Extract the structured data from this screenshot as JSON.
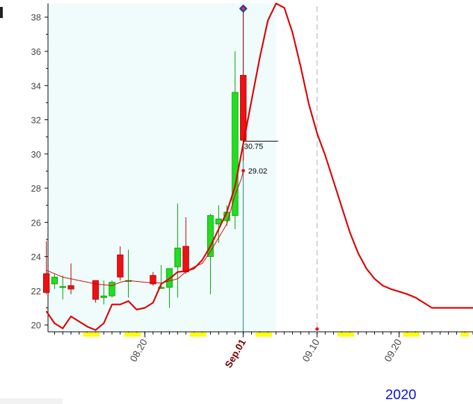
{
  "chart_data": {
    "type": "candlestick",
    "year_label": "2020",
    "y_ticks": [
      "20",
      "22",
      "24",
      "26",
      "28",
      "30",
      "32",
      "34",
      "36",
      "38"
    ],
    "ylim": [
      19.6,
      38.8
    ],
    "x_ticks": [
      {
        "day": 20,
        "label": "08.20",
        "bold": false
      },
      {
        "day": 32,
        "label": "Sep.01",
        "bold": true
      },
      {
        "day": 41,
        "label": "09.10",
        "bold": false
      },
      {
        "day": 51,
        "label": "09.20",
        "bold": false
      }
    ],
    "xlim": [
      8.2,
      60
    ],
    "history_end_day": 36,
    "peak_day": 41,
    "last_price": {
      "value": 30.75,
      "label": "30.75"
    },
    "average_point": {
      "value": 29.02,
      "label": "29.02"
    },
    "peak_marker": {
      "value": 38.5
    },
    "candles": [
      {
        "day": 8,
        "open": 23.0,
        "close": 21.9,
        "high": 24.9,
        "low": 21.8
      },
      {
        "day": 9,
        "open": 22.4,
        "close": 22.8,
        "high": 23.0,
        "low": 22.1
      },
      {
        "day": 10,
        "open": 22.2,
        "close": 22.25,
        "high": 22.9,
        "low": 21.5
      },
      {
        "day": 11,
        "open": 22.3,
        "close": 22.1,
        "high": 23.6,
        "low": 21.8
      },
      {
        "day": 14,
        "open": 22.6,
        "close": 21.5,
        "high": 22.6,
        "low": 21.3
      },
      {
        "day": 15,
        "open": 21.6,
        "close": 21.7,
        "high": 22.6,
        "low": 21.2
      },
      {
        "day": 16,
        "open": 21.7,
        "close": 22.5,
        "high": 22.6,
        "low": 21.6
      },
      {
        "day": 17,
        "open": 24.1,
        "close": 22.8,
        "high": 24.6,
        "low": 22.6
      },
      {
        "day": 18,
        "open": 22.6,
        "close": 22.6,
        "high": 24.4,
        "low": 21.6
      },
      {
        "day": 21,
        "open": 22.9,
        "close": 22.4,
        "high": 23.1,
        "low": 22.3
      },
      {
        "day": 22,
        "open": 22.2,
        "close": 22.2,
        "high": 23.5,
        "low": 22.1
      },
      {
        "day": 23,
        "open": 22.2,
        "close": 23.3,
        "high": 23.3,
        "low": 21.0
      },
      {
        "day": 24,
        "open": 23.4,
        "close": 24.5,
        "high": 27.1,
        "low": 21.6
      },
      {
        "day": 25,
        "open": 24.6,
        "close": 23.1,
        "high": 26.3,
        "low": 23.0
      },
      {
        "day": 28,
        "open": 24.0,
        "close": 26.4,
        "high": 26.5,
        "low": 21.8
      },
      {
        "day": 29,
        "open": 25.9,
        "close": 26.2,
        "high": 27.0,
        "low": 24.8
      },
      {
        "day": 30,
        "open": 26.1,
        "close": 26.6,
        "high": 27.0,
        "low": 25.8
      },
      {
        "day": 31,
        "open": 26.4,
        "close": 33.6,
        "high": 36.0,
        "low": 25.6
      },
      {
        "day": 32,
        "open": 34.6,
        "close": 30.8,
        "high": 38.5,
        "low": 29.6
      }
    ],
    "series": [
      {
        "style": "thin",
        "x": [
          8,
          10,
          12,
          14,
          16,
          17,
          18,
          20,
          22,
          24,
          25,
          26,
          27,
          28,
          29,
          30,
          31,
          31.8,
          32
        ],
        "y": [
          23.2,
          22.8,
          22.6,
          22.4,
          22.3,
          22.5,
          22.6,
          22.5,
          22.45,
          22.7,
          23.1,
          23.4,
          23.6,
          24.3,
          25.1,
          25.9,
          27.6,
          28.6,
          29.02
        ]
      },
      {
        "style": "bold",
        "x": [
          8,
          9,
          10,
          11,
          12,
          13,
          14,
          15,
          16,
          17,
          18,
          19,
          20,
          21,
          22,
          23,
          24,
          25,
          26,
          27,
          28,
          29,
          30,
          31,
          32,
          33,
          34,
          35,
          36,
          37,
          38,
          39,
          40,
          41,
          42,
          43,
          44,
          45,
          46,
          47,
          48,
          49,
          50,
          51,
          52,
          53,
          54,
          55,
          56,
          57,
          58,
          59,
          60
        ],
        "y": [
          20.8,
          20.1,
          19.8,
          20.5,
          20.2,
          19.9,
          19.7,
          20.1,
          21.2,
          21.2,
          21.4,
          20.9,
          21.0,
          21.3,
          22.4,
          22.7,
          23.1,
          23.15,
          23.3,
          23.8,
          24.6,
          25.6,
          26.6,
          28.1,
          30.6,
          33.1,
          35.6,
          37.8,
          38.8,
          38.55,
          37.1,
          35.1,
          32.9,
          31.2,
          29.9,
          28.4,
          26.9,
          25.4,
          24.2,
          23.3,
          22.7,
          22.3,
          22.1,
          21.95,
          21.8,
          21.6,
          21.3,
          21.0,
          21.0,
          21.0,
          21.0,
          21.0,
          21.0
        ]
      }
    ],
    "highlight_days": [
      13,
      14,
      18,
      19,
      26,
      27,
      34,
      35,
      44,
      45,
      52,
      53,
      59
    ],
    "colors": {
      "up": "#22dd22",
      "down": "#ee1111",
      "line": "#dd0000",
      "history_bg": "#f0fcfc",
      "current_line": "#1a7a8a",
      "highlight": "#ffff00",
      "tick_text": "#444444",
      "bold_tick": "#7a0000",
      "marker_outer": "#1e3ea8",
      "marker_inner": "#e33333"
    }
  }
}
